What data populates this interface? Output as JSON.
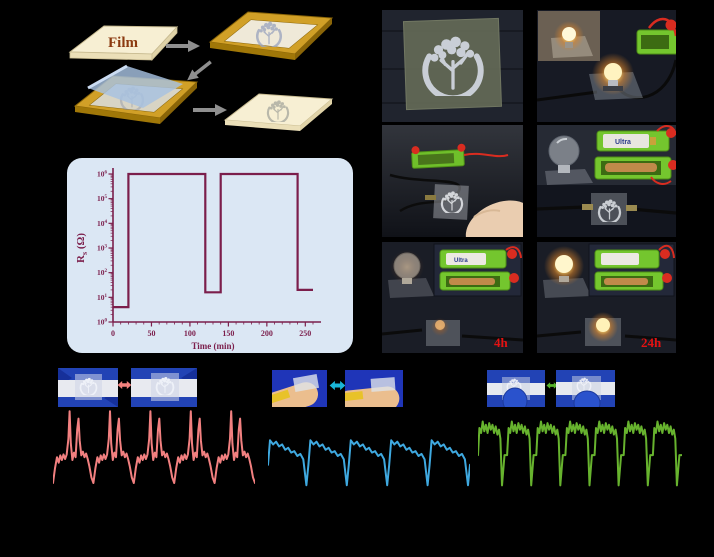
{
  "schematic": {
    "film_label": "Film"
  },
  "photo_panel": {
    "label_4h": "4h",
    "label_24h": "24h",
    "battery_label": "Ultra"
  },
  "colors": {
    "background": "#000000",
    "chart_bg": "#DBE7F4",
    "maroon": "#7B1E4B",
    "pulse": "#F28080",
    "pulse_arrow": "#F4837F",
    "bend": "#3FA9E0",
    "bend_arrow": "#1AB6D8",
    "press": "#67B32E",
    "press_arrow": "#58B42C",
    "label_red": "#E31212",
    "arrow_gray": "#8F8F8F",
    "gold": "#D1A027",
    "film_cream": "#F5ECCB",
    "battery_green": "#74C62E",
    "clip_red": "#D92C20"
  },
  "chart_data": [
    {
      "type": "line",
      "name": "switching-resistance",
      "title": "",
      "xlabel": "Time (min)",
      "ylabel": "Rs (Ω)",
      "ylabel_parts": {
        "base": "R",
        "sub": "s",
        "unit": "(Ω)"
      },
      "x_ticks": [
        0,
        50,
        100,
        150,
        200,
        250
      ],
      "x_minor_step": 10,
      "y_tick_exponents": [
        0,
        1,
        2,
        3,
        4,
        5,
        6
      ],
      "xlim": [
        0,
        260
      ],
      "ylog_decades": [
        0,
        6
      ],
      "grid": false,
      "legend": "none",
      "line_color": "#7B1E4B",
      "points": [
        [
          0,
          4
        ],
        [
          20,
          4
        ],
        [
          20,
          1000000
        ],
        [
          120,
          1000000
        ],
        [
          120,
          16
        ],
        [
          140,
          16
        ],
        [
          140,
          1000000
        ],
        [
          240,
          1000000
        ],
        [
          240,
          20
        ],
        [
          260,
          20
        ]
      ]
    },
    {
      "type": "line",
      "name": "wrist-pulse",
      "description": "relative signal, 5 pulse beats, normalized 0-100",
      "color": "#F28080",
      "cycle_width": 20,
      "repeats": 5,
      "cycle_points": [
        [
          0,
          88
        ],
        [
          1,
          72
        ],
        [
          2,
          60
        ],
        [
          2.8,
          66
        ],
        [
          3.6,
          58
        ],
        [
          4.4,
          63
        ],
        [
          5.2,
          57
        ],
        [
          6,
          62
        ],
        [
          6.8,
          57
        ],
        [
          7.6,
          40
        ],
        [
          8.2,
          10
        ],
        [
          8.8,
          45
        ],
        [
          9.6,
          63
        ],
        [
          10.4,
          55
        ],
        [
          11.2,
          60
        ],
        [
          12,
          30
        ],
        [
          12.6,
          18
        ],
        [
          13.2,
          42
        ],
        [
          14,
          58
        ],
        [
          14.8,
          54
        ],
        [
          15.6,
          60
        ],
        [
          16.4,
          56
        ],
        [
          17.2,
          62
        ],
        [
          18,
          70
        ],
        [
          19,
          82
        ],
        [
          20,
          88
        ]
      ]
    },
    {
      "type": "line",
      "name": "finger-bending",
      "description": "relative signal, 5 bending cycles, normalized 0-100",
      "color": "#3FA9E0",
      "cycle_width": 20,
      "repeats": 5,
      "cycle_points": [
        [
          0,
          60
        ],
        [
          1,
          24
        ],
        [
          2.5,
          30
        ],
        [
          4,
          26
        ],
        [
          5.5,
          33
        ],
        [
          7,
          30
        ],
        [
          8.5,
          38
        ],
        [
          10,
          35
        ],
        [
          11.5,
          42
        ],
        [
          13,
          40
        ],
        [
          14.5,
          47
        ],
        [
          16,
          44
        ],
        [
          17.5,
          52
        ],
        [
          19,
          90
        ],
        [
          20,
          60
        ]
      ]
    },
    {
      "type": "line",
      "name": "finger-pressing",
      "description": "relative signal, 7 pressing cycles, normalized 0-100",
      "color": "#67B32E",
      "cycle_width": 14.3,
      "repeats": 7,
      "cycle_points": [
        [
          0,
          55
        ],
        [
          0.7,
          22
        ],
        [
          1.5,
          28
        ],
        [
          2.3,
          14
        ],
        [
          3.1,
          26
        ],
        [
          3.9,
          18
        ],
        [
          4.7,
          28
        ],
        [
          5.5,
          16
        ],
        [
          6.3,
          24
        ],
        [
          7.1,
          18
        ],
        [
          7.9,
          28
        ],
        [
          8.7,
          20
        ],
        [
          9.5,
          30
        ],
        [
          10.3,
          24
        ],
        [
          11,
          35
        ],
        [
          11.8,
          92
        ],
        [
          13,
          55
        ],
        [
          14.3,
          55
        ]
      ]
    }
  ]
}
